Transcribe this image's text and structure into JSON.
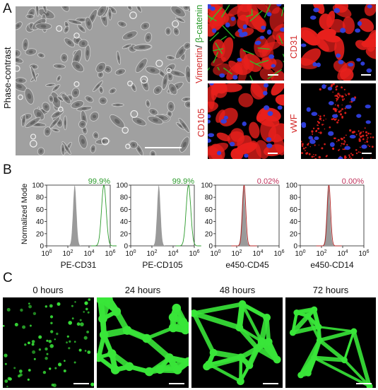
{
  "panels": {
    "a": {
      "letter": "A"
    },
    "b": {
      "letter": "B"
    },
    "c": {
      "letter": "C"
    }
  },
  "panel_a": {
    "phase_label": "Phase-contrast",
    "stain_vim": "Vimentin",
    "stain_sep": "/ ",
    "stain_bcat": "β-catenin",
    "stain_cd31": "CD31",
    "stain_cd105": "CD105",
    "stain_vwf": "vWF",
    "colors": {
      "red_label": "#d42a2a",
      "green_label": "#2a9a2a",
      "red_stain": "#e8201c",
      "green_stain": "#28c828",
      "nuclei": "#3040e0"
    }
  },
  "panel_b": {
    "ylabel": "Normalized Mode",
    "yticks": [
      "0",
      "20",
      "40",
      "60",
      "80",
      "100"
    ],
    "xtick_exps": [
      "0",
      "2",
      "4",
      "6"
    ],
    "xtick_base": "10",
    "histograms": [
      {
        "marker": "PE-CD31",
        "percent": "99.9%",
        "percent_color": "#2a9a2a",
        "stain": "green",
        "peak_log": 5.4
      },
      {
        "marker": "PE-CD105",
        "percent": "99.9%",
        "percent_color": "#2a9a2a",
        "stain": "green",
        "peak_log": 5.45
      },
      {
        "marker": "e450-CD45",
        "percent": "0.02%",
        "percent_color": "#c0305a",
        "stain": "red",
        "peak_log": 2.7
      },
      {
        "marker": "e450-CD14",
        "percent": "0.00%",
        "percent_color": "#c0305a",
        "stain": "red",
        "peak_log": 2.7
      }
    ],
    "isotype_peak_log": 2.65,
    "colors": {
      "isotype_fill": "#9a9a9a",
      "green_line": "#2a9a2a",
      "red_line": "#b02020"
    }
  },
  "panel_c": {
    "timepoints": [
      {
        "label": "0 hours"
      },
      {
        "label": "24 hours"
      },
      {
        "label": "48 hours"
      },
      {
        "label": "72 hours"
      }
    ],
    "colors": {
      "gfp": "#39e639",
      "background": "#000000"
    }
  }
}
